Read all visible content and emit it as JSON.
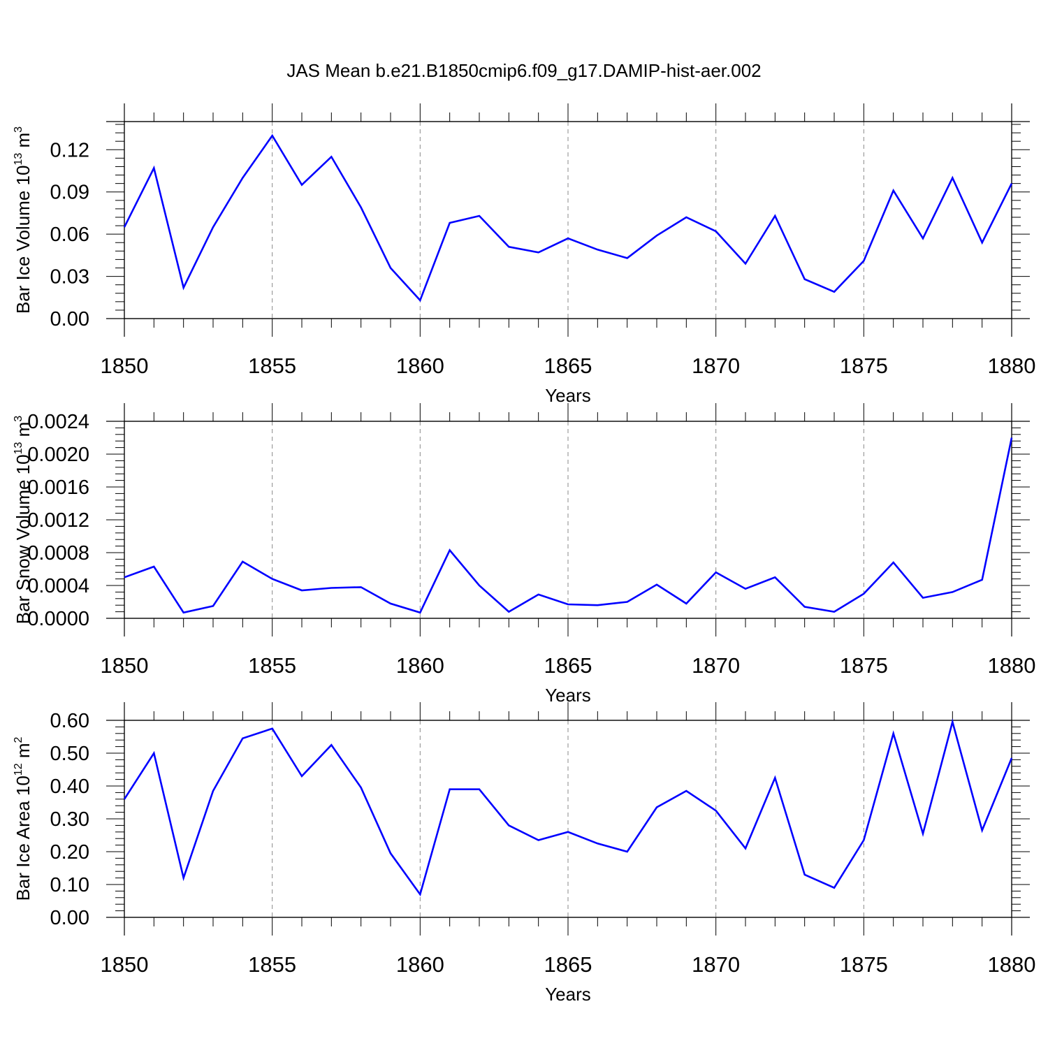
{
  "title": "JAS Mean b.e21.B1850cmip6.f09_g17.DAMIP-hist-aer.002",
  "colors": {
    "line": "#0000ff",
    "axis": "#000000",
    "grid": "#888888"
  },
  "chart_data": [
    {
      "type": "line",
      "title": "JAS Mean b.e21.B1850cmip6.f09_g17.DAMIP-hist-aer.002",
      "xlabel": "Years",
      "ylabel": "Bar Ice Volume 10",
      "ylabel_sup": "13",
      "ylabel_unit": " m",
      "ylabel_unit_sup": "3",
      "xlim": [
        1850,
        1880
      ],
      "ylim": [
        0,
        0.14
      ],
      "xticks": [
        1850,
        1855,
        1860,
        1865,
        1870,
        1875,
        1880
      ],
      "yticks": [
        0.0,
        0.03,
        0.06,
        0.09,
        0.12
      ],
      "ytick_labels": [
        "0.00",
        "0.03",
        "0.06",
        "0.09",
        "0.12"
      ],
      "grid": "vertical dashed at major x ticks",
      "x": [
        1850,
        1851,
        1852,
        1853,
        1854,
        1855,
        1856,
        1857,
        1858,
        1859,
        1860,
        1861,
        1862,
        1863,
        1864,
        1865,
        1866,
        1867,
        1868,
        1869,
        1870,
        1871,
        1872,
        1873,
        1874,
        1875,
        1876,
        1877,
        1878,
        1879,
        1880
      ],
      "values": [
        0.065,
        0.107,
        0.022,
        0.065,
        0.1,
        0.13,
        0.095,
        0.115,
        0.079,
        0.036,
        0.013,
        0.068,
        0.073,
        0.051,
        0.047,
        0.057,
        0.049,
        0.043,
        0.059,
        0.072,
        0.062,
        0.039,
        0.073,
        0.028,
        0.019,
        0.041,
        0.091,
        0.057,
        0.1,
        0.054,
        0.096
      ]
    },
    {
      "type": "line",
      "xlabel": "Years",
      "ylabel": "Bar Snow Volume 10",
      "ylabel_sup": "13",
      "ylabel_unit": " m",
      "ylabel_unit_sup": "3",
      "xlim": [
        1850,
        1880
      ],
      "ylim": [
        0,
        0.0024
      ],
      "xticks": [
        1850,
        1855,
        1860,
        1865,
        1870,
        1875,
        1880
      ],
      "yticks": [
        0.0,
        0.0004,
        0.0008,
        0.0012,
        0.0016,
        0.002,
        0.0024
      ],
      "ytick_labels": [
        "0.0000",
        "0.0004",
        "0.0008",
        "0.0012",
        "0.0016",
        "0.0020",
        "0.0024"
      ],
      "grid": "vertical dashed at major x ticks",
      "x": [
        1850,
        1851,
        1852,
        1853,
        1854,
        1855,
        1856,
        1857,
        1858,
        1859,
        1860,
        1861,
        1862,
        1863,
        1864,
        1865,
        1866,
        1867,
        1868,
        1869,
        1870,
        1871,
        1872,
        1873,
        1874,
        1875,
        1876,
        1877,
        1878,
        1879,
        1880
      ],
      "values": [
        0.0005,
        0.00063,
        7e-05,
        0.00015,
        0.00069,
        0.00048,
        0.00034,
        0.00037,
        0.00038,
        0.00018,
        7e-05,
        0.00083,
        0.0004,
        8e-05,
        0.00029,
        0.00017,
        0.00016,
        0.0002,
        0.00041,
        0.00018,
        0.00056,
        0.00036,
        0.0005,
        0.00014,
        8e-05,
        0.0003,
        0.00068,
        0.00025,
        0.00032,
        0.00047,
        0.0022
      ]
    },
    {
      "type": "line",
      "xlabel": "Years",
      "ylabel": "Bar Ice Area 10",
      "ylabel_sup": "12",
      "ylabel_unit": " m",
      "ylabel_unit_sup": "2",
      "xlim": [
        1850,
        1880
      ],
      "ylim": [
        0,
        0.6
      ],
      "xticks": [
        1850,
        1855,
        1860,
        1865,
        1870,
        1875,
        1880
      ],
      "yticks": [
        0.0,
        0.1,
        0.2,
        0.3,
        0.4,
        0.5,
        0.6
      ],
      "ytick_labels": [
        "0.00",
        "0.10",
        "0.20",
        "0.30",
        "0.40",
        "0.50",
        "0.60"
      ],
      "grid": "vertical dashed at major x ticks",
      "x": [
        1850,
        1851,
        1852,
        1853,
        1854,
        1855,
        1856,
        1857,
        1858,
        1859,
        1860,
        1861,
        1862,
        1863,
        1864,
        1865,
        1866,
        1867,
        1868,
        1869,
        1870,
        1871,
        1872,
        1873,
        1874,
        1875,
        1876,
        1877,
        1878,
        1879,
        1880
      ],
      "values": [
        0.36,
        0.5,
        0.12,
        0.385,
        0.545,
        0.575,
        0.43,
        0.525,
        0.395,
        0.195,
        0.07,
        0.39,
        0.39,
        0.28,
        0.235,
        0.26,
        0.225,
        0.2,
        0.335,
        0.385,
        0.325,
        0.21,
        0.425,
        0.13,
        0.09,
        0.235,
        0.56,
        0.255,
        0.595,
        0.265,
        0.485
      ]
    }
  ]
}
